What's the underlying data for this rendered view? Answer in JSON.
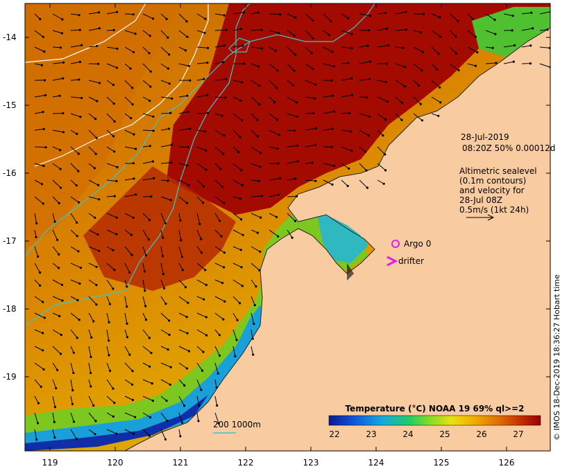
{
  "map": {
    "date": "28-Jul-2019",
    "pass_info": "08:20Z  50% 0.00012d",
    "alt_line1": "Altimetric sealevel",
    "alt_line2": "(0.1m contours)",
    "alt_line3": "and velocity for",
    "alt_line4": "28-Jul 08Z",
    "alt_line5": "0.5m/s (1kt 24h)",
    "argo_label": "Argo 0",
    "drifter_label": "drifter",
    "depth_label": "200  1000m",
    "credit": "© IMOS 18-Dec-2019 18:36:27 Hobart time",
    "y_ticks": [
      "-14",
      "-15",
      "-16",
      "-17",
      "-18",
      "-19"
    ],
    "x_ticks": [
      "119",
      "120",
      "121",
      "122",
      "123",
      "124",
      "125",
      "126"
    ]
  },
  "colorbar": {
    "title": "Temperature (°C) NOAA 19 69% ql>=2",
    "ticks": [
      "22",
      "23",
      "24",
      "25",
      "26",
      "27"
    ],
    "colors": [
      "#0a1a8c",
      "#1155dd",
      "#11aadd",
      "#22cc66",
      "#88dd22",
      "#e8e011",
      "#f0b000",
      "#e07000",
      "#c83000",
      "#9a0000"
    ]
  },
  "colors": {
    "land": "#f9cba0",
    "warm_sea": "#a30a00",
    "contour": "#ffffff",
    "isobath": "#3fc6c6",
    "argo": "#e020e0"
  }
}
